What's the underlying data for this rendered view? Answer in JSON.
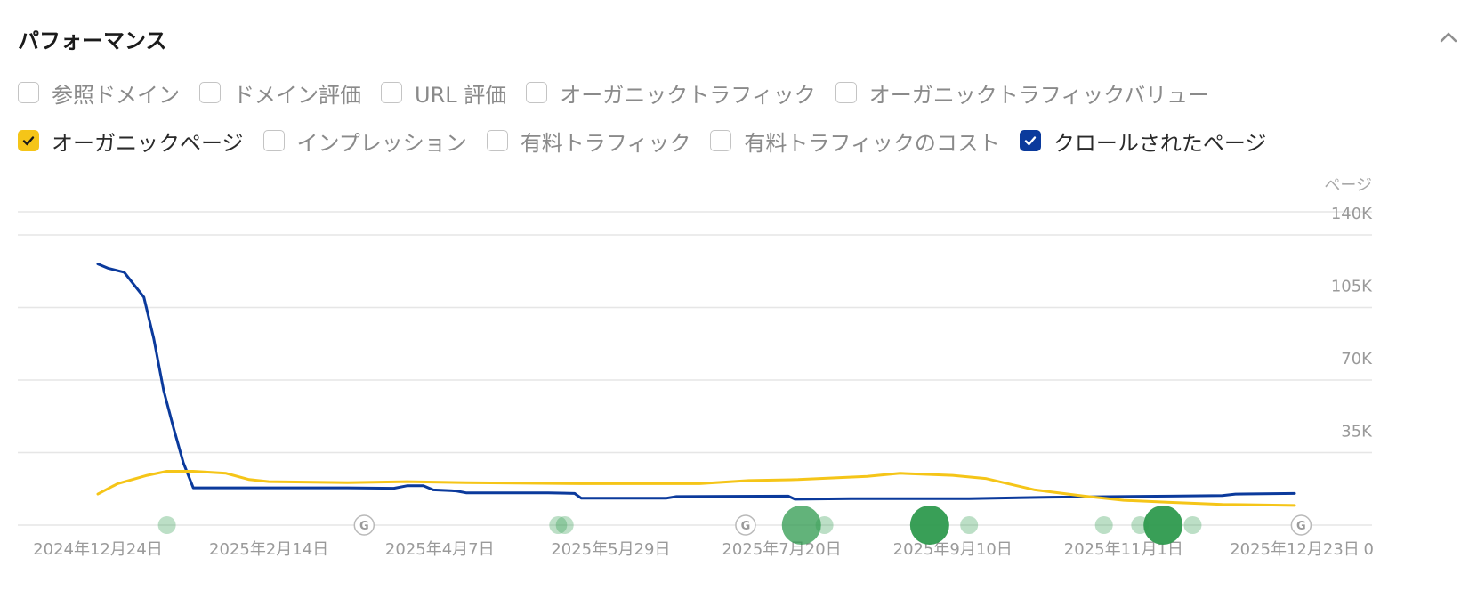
{
  "title": "パフォーマンス",
  "toggle_rows": [
    [
      {
        "label": "参照ドメイン",
        "checked": false,
        "color": ""
      },
      {
        "label": "ドメイン評価",
        "checked": false,
        "color": ""
      },
      {
        "label": "URL 評価",
        "checked": false,
        "color": ""
      },
      {
        "label": "オーガニックトラフィック",
        "checked": false,
        "color": ""
      },
      {
        "label": "オーガニックトラフィックバリュー",
        "checked": false,
        "color": ""
      }
    ],
    [
      {
        "label": "オーガニックページ",
        "checked": true,
        "color": "#f5c518"
      },
      {
        "label": "インプレッション",
        "checked": false,
        "color": ""
      },
      {
        "label": "有料トラフィック",
        "checked": false,
        "color": ""
      },
      {
        "label": "有料トラフィックのコスト",
        "checked": false,
        "color": ""
      },
      {
        "label": "クロールされたページ",
        "checked": true,
        "color": "#0b3a9c"
      }
    ]
  ],
  "colors": {
    "organic_pages": "#f5c518",
    "crawled_pages": "#0b3a9c",
    "grid": "#e6e6e6",
    "event_green": "#2e9a4e"
  },
  "chart_data": {
    "type": "line",
    "y_unit": "ページ",
    "yticks": [
      "140K",
      "105K",
      "70K",
      "35K",
      "0"
    ],
    "ylim": [
      0,
      140000
    ],
    "xticks": [
      "2024年12月24日",
      "2025年2月14日",
      "2025年4月7日",
      "2025年5月29日",
      "2025年7月20日",
      "2025年9月10日",
      "2025年11月1日",
      "2025年12月23日"
    ],
    "x_range": [
      "2024-12-24",
      "2025-12-23"
    ],
    "grid": true,
    "series": [
      {
        "key": "crawled_pages",
        "points": [
          [
            "2024-12-24",
            126000
          ],
          [
            "2024-12-27",
            124000
          ],
          [
            "2025-01-01",
            122000
          ],
          [
            "2025-01-04",
            116000
          ],
          [
            "2025-01-07",
            110000
          ],
          [
            "2025-01-10",
            90000
          ],
          [
            "2025-01-13",
            65000
          ],
          [
            "2025-01-16",
            47000
          ],
          [
            "2025-01-19",
            30000
          ],
          [
            "2025-01-22",
            18000
          ],
          [
            "2025-02-05",
            18000
          ],
          [
            "2025-03-10",
            18000
          ],
          [
            "2025-03-24",
            17800
          ],
          [
            "2025-03-28",
            19000
          ],
          [
            "2025-04-02",
            19000
          ],
          [
            "2025-04-05",
            17000
          ],
          [
            "2025-04-12",
            16500
          ],
          [
            "2025-04-15",
            15600
          ],
          [
            "2025-05-10",
            15600
          ],
          [
            "2025-05-18",
            15300
          ],
          [
            "2025-05-20",
            13000
          ],
          [
            "2025-06-15",
            13000
          ],
          [
            "2025-06-18",
            13800
          ],
          [
            "2025-07-22",
            14000
          ],
          [
            "2025-07-24",
            12500
          ],
          [
            "2025-08-10",
            12800
          ],
          [
            "2025-09-15",
            12800
          ],
          [
            "2025-10-10",
            13500
          ],
          [
            "2025-11-15",
            14000
          ],
          [
            "2025-12-01",
            14300
          ],
          [
            "2025-12-05",
            15000
          ],
          [
            "2025-12-23",
            15300
          ]
        ]
      },
      {
        "key": "organic_pages",
        "points": [
          [
            "2024-12-24",
            15000
          ],
          [
            "2024-12-30",
            20000
          ],
          [
            "2025-01-08",
            24000
          ],
          [
            "2025-01-14",
            26000
          ],
          [
            "2025-01-22",
            26000
          ],
          [
            "2025-02-01",
            25000
          ],
          [
            "2025-02-08",
            22000
          ],
          [
            "2025-02-14",
            21000
          ],
          [
            "2025-03-10",
            20500
          ],
          [
            "2025-03-28",
            21000
          ],
          [
            "2025-04-15",
            20500
          ],
          [
            "2025-05-20",
            20000
          ],
          [
            "2025-06-25",
            20000
          ],
          [
            "2025-07-10",
            21500
          ],
          [
            "2025-07-25",
            22000
          ],
          [
            "2025-08-15",
            23500
          ],
          [
            "2025-08-25",
            25000
          ],
          [
            "2025-09-10",
            24000
          ],
          [
            "2025-09-20",
            22500
          ],
          [
            "2025-10-05",
            17000
          ],
          [
            "2025-10-20",
            14000
          ],
          [
            "2025-11-01",
            12000
          ],
          [
            "2025-11-15",
            11000
          ],
          [
            "2025-12-01",
            10000
          ],
          [
            "2025-12-23",
            9500
          ]
        ]
      }
    ],
    "events": [
      {
        "date": "2025-01-14",
        "type": "annotation",
        "size": "small",
        "intensity": "light"
      },
      {
        "date": "2025-03-15",
        "type": "google-update"
      },
      {
        "date": "2025-05-13",
        "type": "annotation",
        "size": "small",
        "intensity": "light"
      },
      {
        "date": "2025-05-15",
        "type": "annotation",
        "size": "small",
        "intensity": "light"
      },
      {
        "date": "2025-07-09",
        "type": "google-update"
      },
      {
        "date": "2025-07-26",
        "type": "annotation",
        "size": "large",
        "intensity": "medium"
      },
      {
        "date": "2025-08-02",
        "type": "annotation",
        "size": "small",
        "intensity": "light"
      },
      {
        "date": "2025-09-03",
        "type": "annotation",
        "size": "large",
        "intensity": "strong"
      },
      {
        "date": "2025-09-15",
        "type": "annotation",
        "size": "small",
        "intensity": "light"
      },
      {
        "date": "2025-10-26",
        "type": "annotation",
        "size": "small",
        "intensity": "light"
      },
      {
        "date": "2025-11-06",
        "type": "annotation",
        "size": "small",
        "intensity": "light"
      },
      {
        "date": "2025-11-13",
        "type": "annotation",
        "size": "large",
        "intensity": "strong"
      },
      {
        "date": "2025-11-22",
        "type": "annotation",
        "size": "small",
        "intensity": "light"
      },
      {
        "date": "2025-12-25",
        "type": "google-update"
      }
    ]
  }
}
